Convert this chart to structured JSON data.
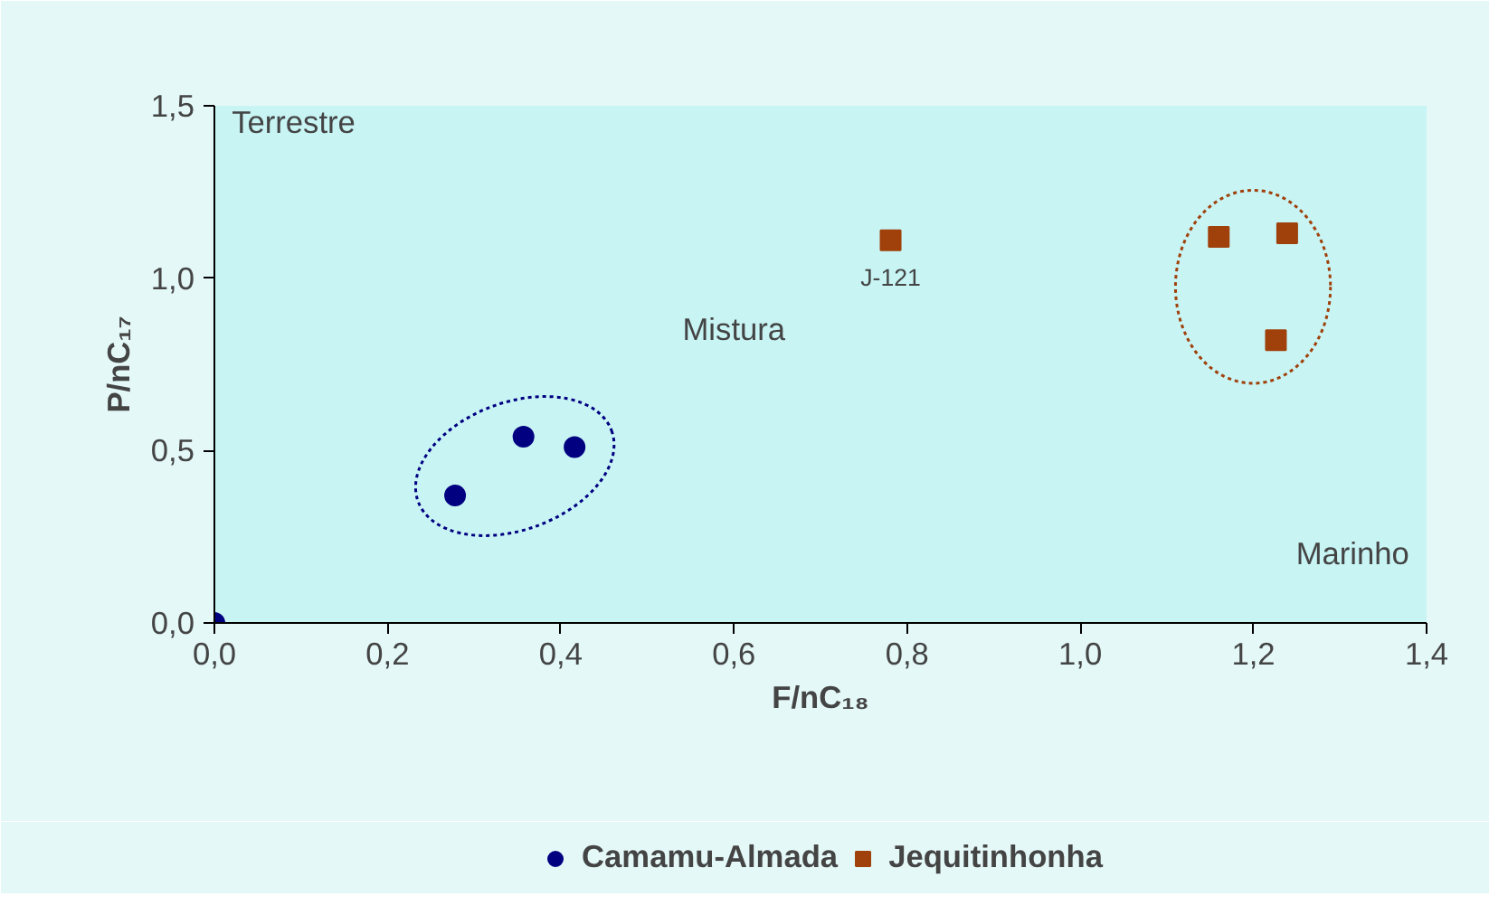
{
  "chart_data": {
    "type": "scatter",
    "xlabel": "F/nC₁₈",
    "ylabel": "P/nC₁₇",
    "series": [
      {
        "name": "Camamu-Almada",
        "color": "#000080",
        "marker": "circle",
        "x": [
          0.0,
          0.278,
          0.357,
          0.416
        ],
        "values": [
          0.0,
          0.37,
          0.54,
          0.51
        ]
      },
      {
        "name": "Jequitinhonha",
        "color": "#a0400a",
        "marker": "square",
        "x": [
          0.781,
          1.16,
          1.239,
          1.226
        ],
        "values": [
          1.11,
          1.12,
          1.13,
          0.82
        ]
      }
    ],
    "xlim": [
      0,
      1.4
    ],
    "ylim": [
      0,
      1.5
    ],
    "xticks": [
      {
        "value": 0,
        "label": "0,0"
      },
      {
        "value": 0.2,
        "label": "0,2"
      },
      {
        "value": 0.4,
        "label": "0,4"
      },
      {
        "value": 0.6,
        "label": "0,6"
      },
      {
        "value": 0.8,
        "label": "0,8"
      },
      {
        "value": 1.0,
        "label": "1,0"
      },
      {
        "value": 1.2,
        "label": "1,2"
      },
      {
        "value": 1.4,
        "label": "1,4"
      }
    ],
    "yticks": [
      {
        "value": 0,
        "label": "0,0"
      },
      {
        "value": 0.5,
        "label": "0,5"
      },
      {
        "value": 1.0,
        "label": "1,0"
      },
      {
        "value": 1.5,
        "label": "1,5"
      }
    ],
    "annotations": [
      "Terrestre",
      "Mistura",
      "Marinho",
      {
        "text": "J-121",
        "x": 0.781,
        "y": 1.11
      }
    ],
    "grid": false,
    "legend": "bottom"
  }
}
